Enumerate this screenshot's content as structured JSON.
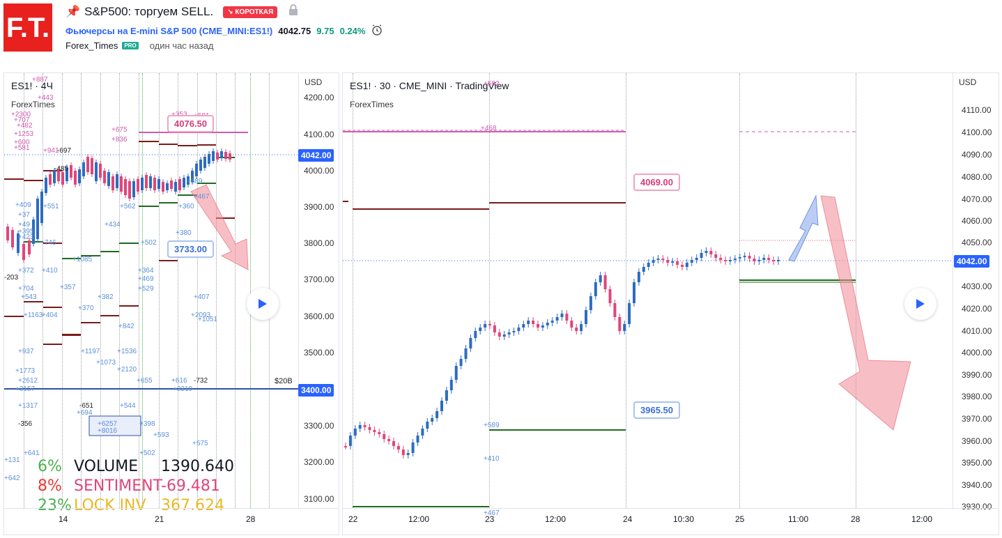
{
  "header": {
    "logo_text": "F.T.",
    "title": "S&P500: торгуем SELL.",
    "badge": "↘ КОРОТКАЯ",
    "symbol_link": "Фьючерсы на E-mini S&P 500 (CME_MINI:ES1!)",
    "price": "4042.75",
    "change": "9.75",
    "change_pct": "0.24%",
    "author": "Forex_Times",
    "pro": "PRO",
    "time_ago": "один час назад"
  },
  "left_chart": {
    "label": "ES1! · 4Ч",
    "watermark": "ForexTimes",
    "currency": "USD",
    "price_axis": [
      "4200.00",
      "4100.00",
      "4000.00",
      "3900.00",
      "3800.00",
      "3700.00",
      "3600.00",
      "3500.00",
      "3300.00",
      "3200.00",
      "3100.00"
    ],
    "current_price": "4042.00",
    "level_price": "3400.00",
    "level_label": "$20B",
    "time_axis": [
      "14",
      "21",
      "28"
    ],
    "callout_top": "4076.50",
    "callout_bottom": "3733.00",
    "stats": [
      {
        "pct": "6%",
        "name": "VOLUME",
        "value": "1390.640",
        "color": "#4caf50",
        "name_color": "#131722",
        "value_color": "#131722"
      },
      {
        "pct": "8%",
        "name": "SENTIMENT",
        "value": "-69.481",
        "color": "#e53935",
        "name_color": "#e0457b",
        "value_color": "#e0457b"
      },
      {
        "pct": "23%",
        "name": "LOCK INV",
        "value": "367.624",
        "color": "#4caf50",
        "name_color": "#e8b923",
        "value_color": "#e8b923"
      }
    ],
    "notes": [
      "+887",
      "+443",
      "+2300",
      "+707",
      "+482",
      "+1253",
      "+600",
      "+581",
      "+941",
      "-697",
      "+675",
      "+836",
      "+353",
      "+581",
      "-485",
      "+551",
      "+409",
      "+37",
      "+49",
      "+395",
      "+423",
      "+746",
      "+562",
      "+434",
      "+360",
      "+589",
      "+467",
      "+380",
      "+502",
      "+1085",
      "+372",
      "+410",
      "+357",
      "+364",
      "+469",
      "+529",
      "+704",
      "+543",
      "+382",
      "+370",
      "-203",
      "+1163",
      "+404",
      "+842",
      "+407",
      "+2093",
      "+1051",
      "+937",
      "+1197",
      "+1536",
      "+1073",
      "+2120",
      "+1773",
      "+2612",
      "+3157",
      "+655",
      "+616",
      "-732",
      "+2310",
      "+1317",
      "-651",
      "+694",
      "+544",
      "-356",
      "+6257",
      "+8016",
      "+398",
      "+593",
      "+641",
      "+575",
      "+502",
      "+131",
      "+642"
    ]
  },
  "right_chart": {
    "label": "ES1! · 30 · CME_MINI · TradingView",
    "watermark": "ForexTimes",
    "currency": "USD",
    "price_axis": [
      "4110.00",
      "4100.00",
      "4090.00",
      "4080.00",
      "4070.00",
      "4060.00",
      "4050.00",
      "4030.00",
      "4020.00",
      "4010.00",
      "4000.00",
      "3990.00",
      "3980.00",
      "3970.00",
      "3960.00",
      "3950.00",
      "3940.00",
      "3930.00"
    ],
    "current_price": "4042.00",
    "time_axis": [
      "22",
      "12:00",
      "23",
      "12:00",
      "24",
      "10:30",
      "25",
      "11:00",
      "28",
      "12:00"
    ],
    "callout_top": "4069.00",
    "callout_bottom": "3965.50",
    "notes": [
      "+468",
      "+589",
      "+410",
      "+467",
      "+592"
    ]
  }
}
